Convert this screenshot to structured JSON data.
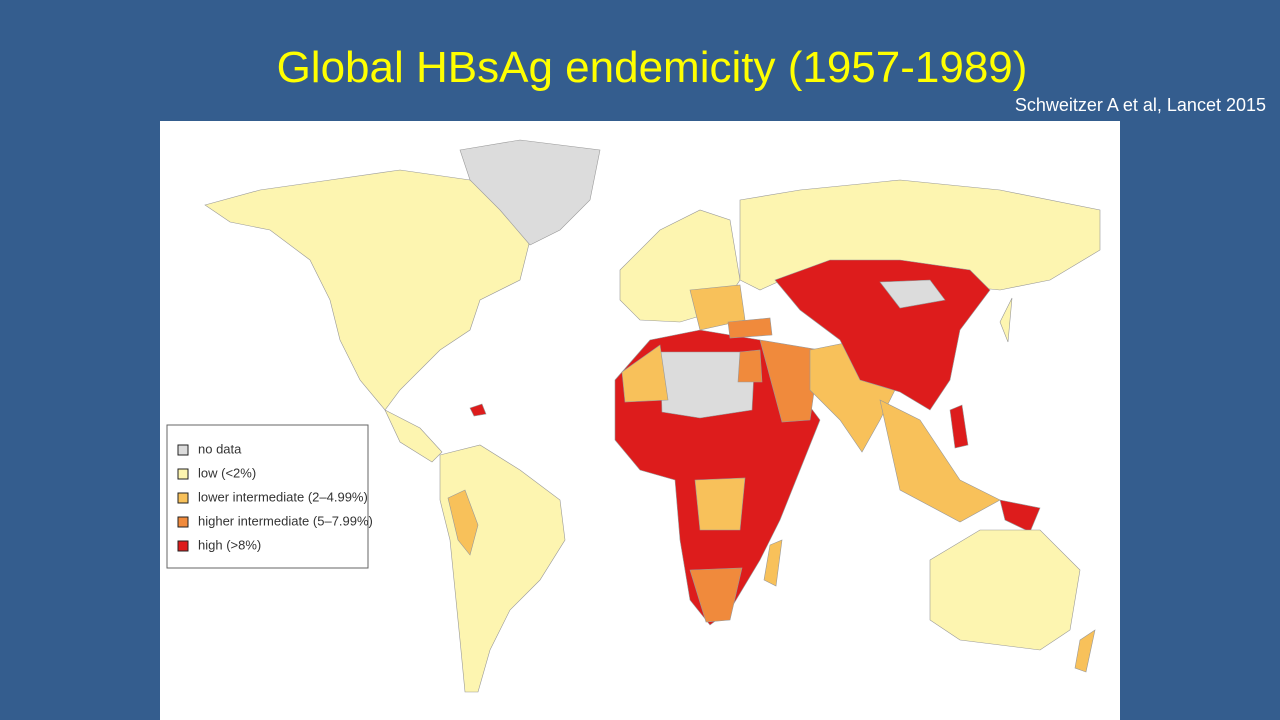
{
  "title": "Global HBsAg endemicity (1957-1989)",
  "source": "Schweitzer A et al, Lancet 2015",
  "legend": {
    "items": [
      {
        "label": "no data",
        "color": "#dcdcdc"
      },
      {
        "label": "low (<2%)",
        "color": "#fdf5b0"
      },
      {
        "label": "lower intermediate (2–4.99%)",
        "color": "#f8c15a"
      },
      {
        "label": "higher intermediate (5–7.99%)",
        "color": "#f08a3c"
      },
      {
        "label": "high (>8%)",
        "color": "#dd1c1c"
      }
    ]
  }
}
